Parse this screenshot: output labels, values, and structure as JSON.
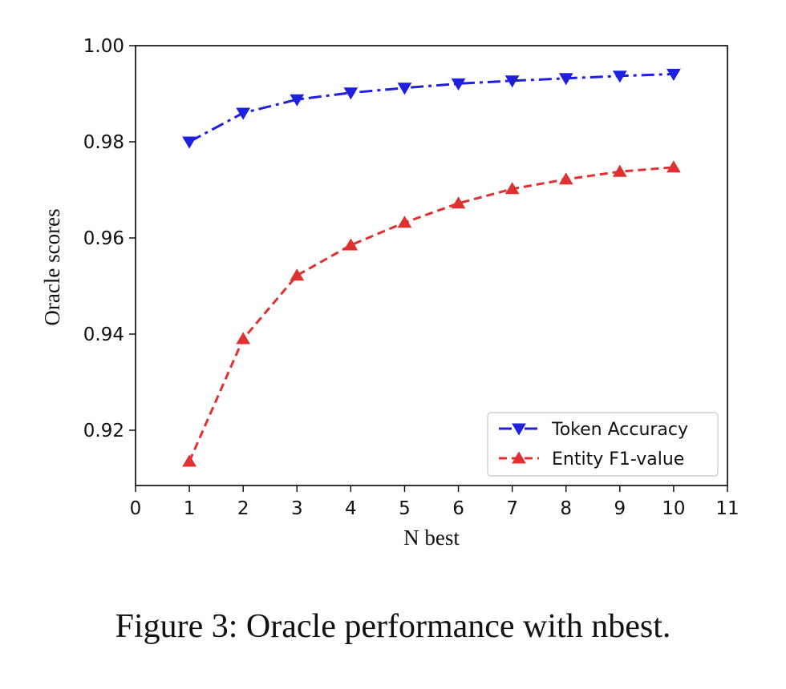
{
  "caption": "Figure 3: Oracle performance with nbest.",
  "chart_data": {
    "type": "line",
    "xlabel": "N best",
    "ylabel": "Oracle scores",
    "xlim": [
      0,
      11
    ],
    "ylim": [
      0.9085,
      1.0
    ],
    "x_ticks": [
      "0",
      "1",
      "2",
      "3",
      "4",
      "5",
      "6",
      "7",
      "8",
      "9",
      "10",
      "11"
    ],
    "y_ticks": [
      "0.92",
      "0.94",
      "0.96",
      "0.98",
      "1.00"
    ],
    "grid": false,
    "legend_position": "lower right",
    "x": [
      1,
      2,
      3,
      4,
      5,
      6,
      7,
      8,
      9,
      10
    ],
    "series": [
      {
        "name": "Token Accuracy",
        "color": "#1f1fdf",
        "line_style": "dash-dot",
        "marker": "triangle-down",
        "values": [
          0.98,
          0.986,
          0.9888,
          0.9902,
          0.9912,
          0.9921,
          0.9927,
          0.9932,
          0.9937,
          0.9941
        ]
      },
      {
        "name": "Entity F1-value",
        "color": "#e03030",
        "line_style": "dashed",
        "marker": "triangle-up",
        "values": [
          0.9135,
          0.939,
          0.9522,
          0.9585,
          0.9632,
          0.9672,
          0.9702,
          0.9722,
          0.9738,
          0.9747
        ]
      }
    ]
  }
}
